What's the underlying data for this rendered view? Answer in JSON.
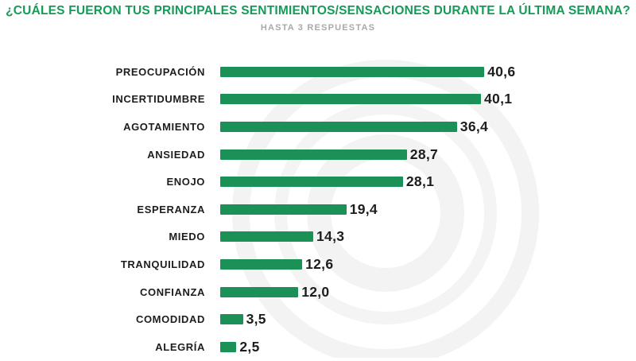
{
  "header": {
    "title": "¿CUÁLES FUERON TUS PRINCIPALES SENTIMIENTOS/SENSACIONES DURANTE LA ÚLTIMA SEMANA?",
    "subtitle": "HASTA 3 RESPUESTAS"
  },
  "colors": {
    "title_green": "#169a58",
    "bar_green": "#1b9157",
    "subtitle_gray": "#a7a9ac",
    "text_black": "#1d1d1b",
    "watermark_gray": "#f3f3f3"
  },
  "chart_data": {
    "type": "bar",
    "orientation": "horizontal",
    "title": "¿CUÁLES FUERON TUS PRINCIPALES SENTIMIENTOS/SENSACIONES DURANTE LA ÚLTIMA SEMANA?",
    "subtitle": "HASTA 3 RESPUESTAS",
    "categories": [
      "PREOCUPACIÓN",
      "INCERTIDUMBRE",
      "AGOTAMIENTO",
      "ANSIEDAD",
      "ENOJO",
      "ESPERANZA",
      "MIEDO",
      "TRANQUILIDAD",
      "CONFIANZA",
      "COMODIDAD",
      "ALEGRÍA"
    ],
    "values": [
      40.6,
      40.1,
      36.4,
      28.7,
      28.1,
      19.4,
      14.3,
      12.6,
      12.0,
      3.5,
      2.5
    ],
    "value_labels": [
      "40,6",
      "40,1",
      "36,4",
      "28,7",
      "28,1",
      "19,4",
      "14,3",
      "12,6",
      "12,0",
      "3,5",
      "2,5"
    ],
    "xlim": [
      0,
      42
    ],
    "grid": false,
    "legend": null,
    "value_label_position": "end-of-bar",
    "unit": "%"
  }
}
